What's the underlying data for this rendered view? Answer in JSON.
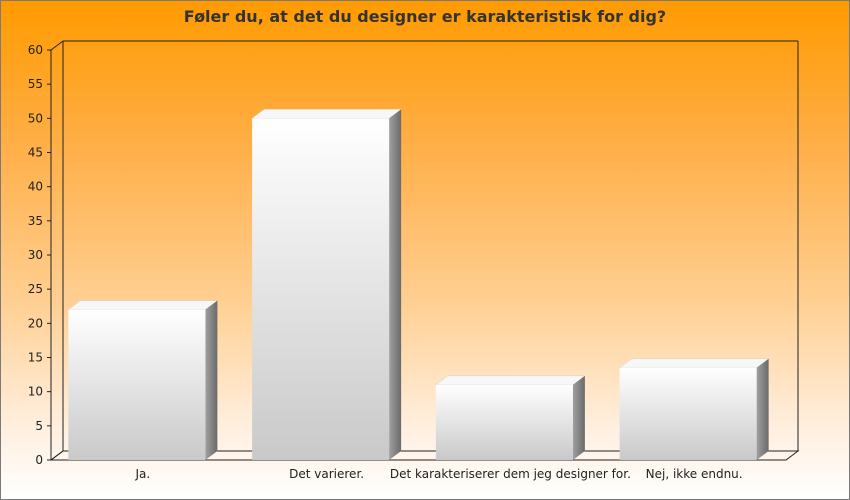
{
  "chart_data": {
    "type": "bar",
    "title": "Føler du, at det du designer er karakteristisk for dig?",
    "categories": [
      "Ja.",
      "Det varierer.",
      "Det karakteriserer dem jeg designer for.",
      "Nej, ikke endnu."
    ],
    "values": [
      22,
      50,
      11,
      13.5
    ],
    "ylim": [
      0,
      60
    ],
    "yticks": [
      0,
      5,
      10,
      15,
      20,
      25,
      30,
      35,
      40,
      45,
      50,
      55,
      60
    ],
    "xlabel": "",
    "ylabel": "",
    "grid": false,
    "legend": "none",
    "background_colors": [
      "#ff9a00",
      "#ffffff"
    ],
    "bar_color": "#e8e8e8"
  }
}
